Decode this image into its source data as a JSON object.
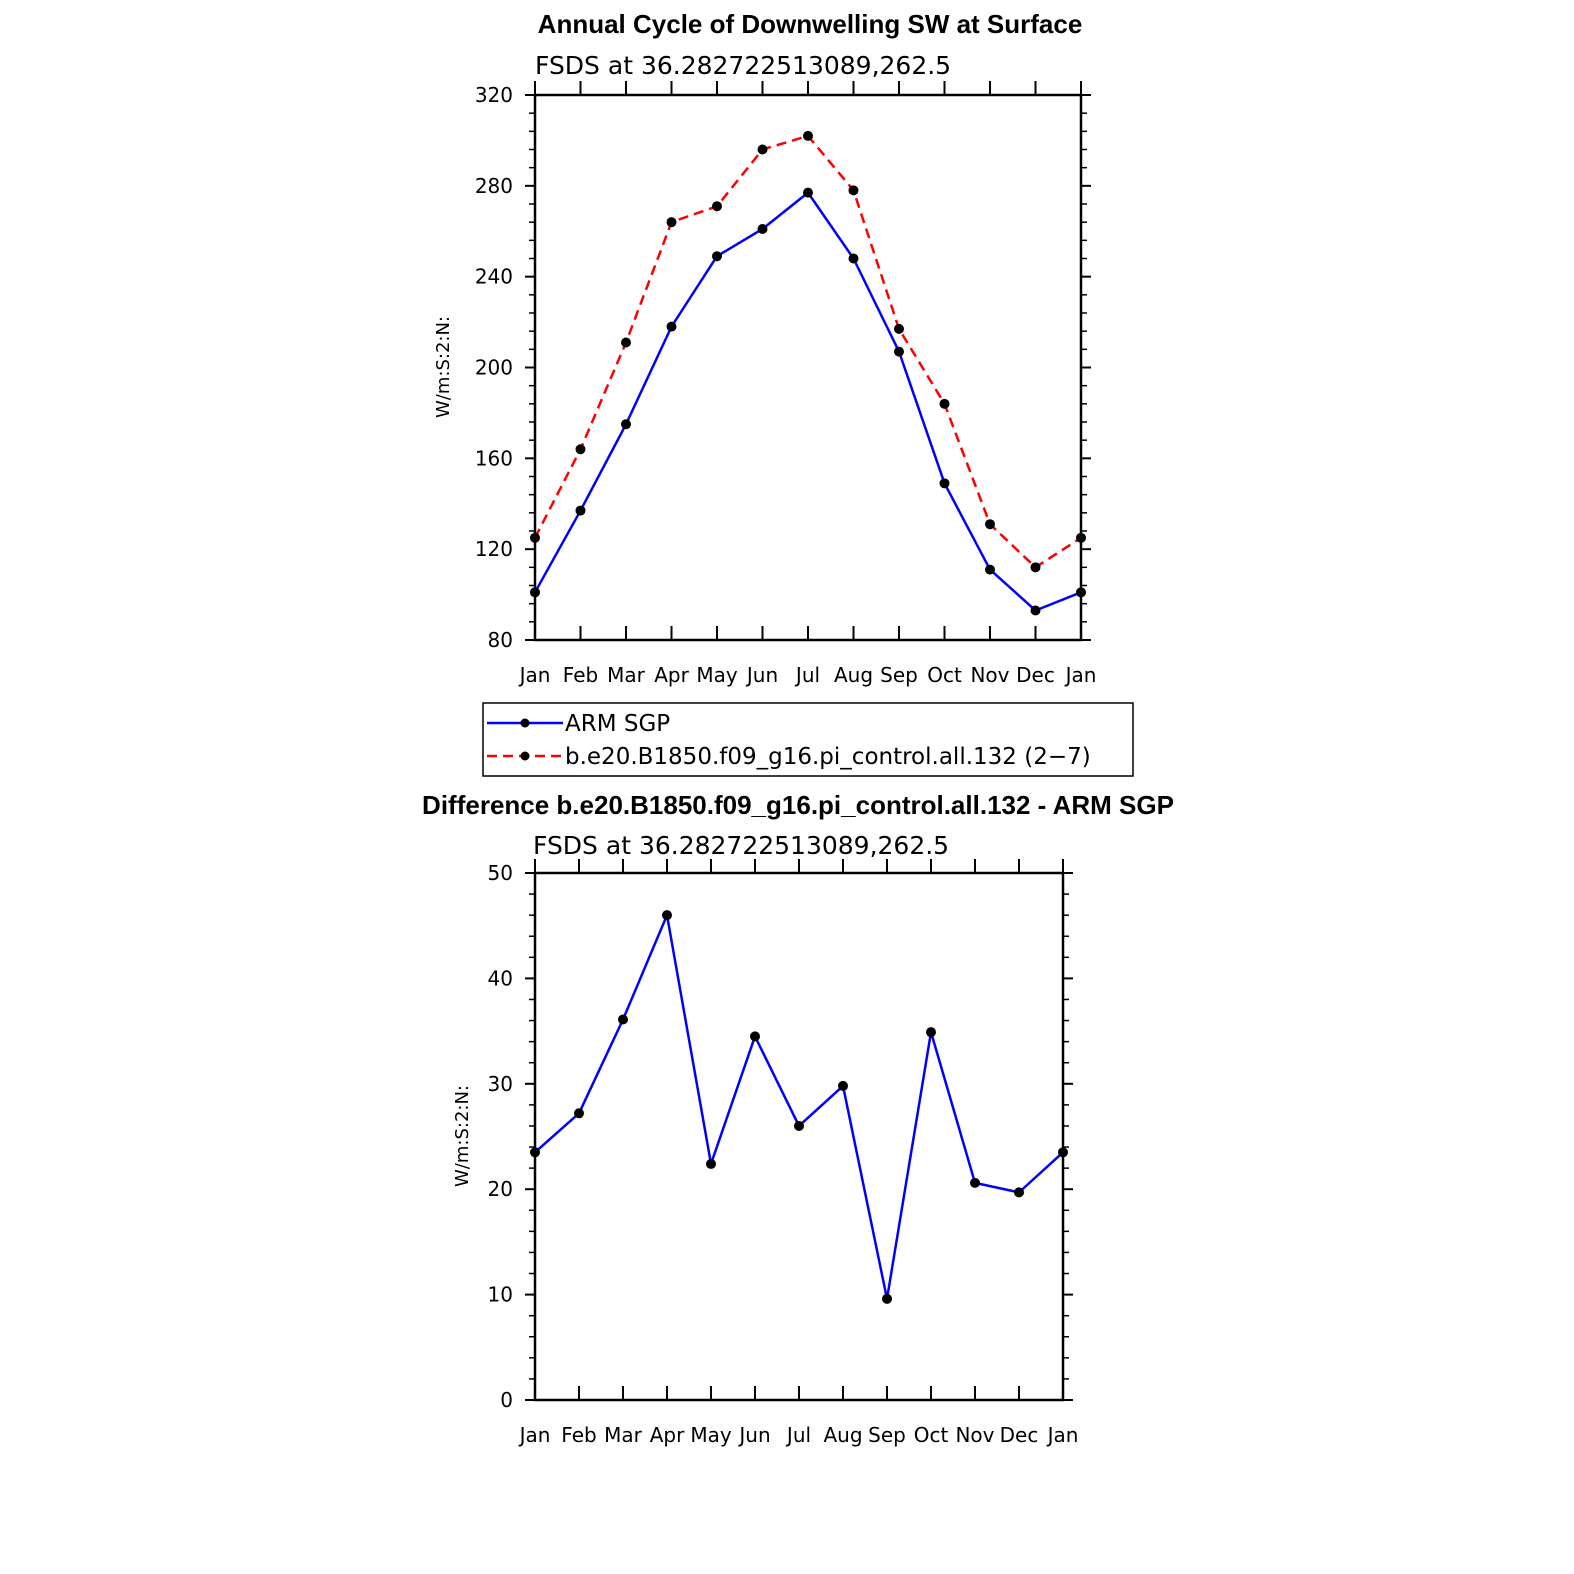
{
  "chart_data": [
    {
      "type": "line",
      "title": "Annual Cycle of Downwelling SW at Surface",
      "subtitle": "FSDS at 36.282722513089,262.5",
      "ylabel": "W/m:S:2:N:",
      "xlabel": "",
      "ylim": [
        80,
        320
      ],
      "yticks": [
        "80",
        "120",
        "160",
        "200",
        "240",
        "280",
        "320"
      ],
      "categories": [
        "Jan",
        "Feb",
        "Mar",
        "Apr",
        "May",
        "Jun",
        "Jul",
        "Aug",
        "Sep",
        "Oct",
        "Nov",
        "Dec",
        "Jan"
      ],
      "series": [
        {
          "name": "ARM SGP",
          "color": "#0000ff",
          "dash": "solid",
          "values": [
            101,
            137,
            175,
            218,
            249,
            261,
            277,
            248,
            207,
            149,
            111,
            93,
            101
          ]
        },
        {
          "name": "b.e20.B1850.f09_g16.pi_control.all.132 (2−7)",
          "color": "#ff0000",
          "dash": "dashed",
          "values": [
            125,
            164,
            211,
            264,
            271,
            296,
            302,
            278,
            217,
            184,
            131,
            112,
            125
          ]
        }
      ],
      "legend": "below-center"
    },
    {
      "type": "line",
      "title": "Difference b.e20.B1850.f09_g16.pi_control.all.132 - ARM SGP",
      "subtitle": "FSDS at 36.282722513089,262.5",
      "ylabel": "W/m:S:2:N:",
      "xlabel": "",
      "ylim": [
        0,
        50
      ],
      "yticks": [
        "0",
        "10",
        "20",
        "30",
        "40",
        "50"
      ],
      "categories": [
        "Jan",
        "Feb",
        "Mar",
        "Apr",
        "May",
        "Jun",
        "Jul",
        "Aug",
        "Sep",
        "Oct",
        "Nov",
        "Dec",
        "Jan"
      ],
      "series": [
        {
          "name": "Difference",
          "color": "#0000ff",
          "dash": "solid",
          "values": [
            23.5,
            27.2,
            36.1,
            46.0,
            22.4,
            34.5,
            26.0,
            29.8,
            9.6,
            34.9,
            20.6,
            19.7,
            23.5
          ]
        }
      ]
    }
  ]
}
